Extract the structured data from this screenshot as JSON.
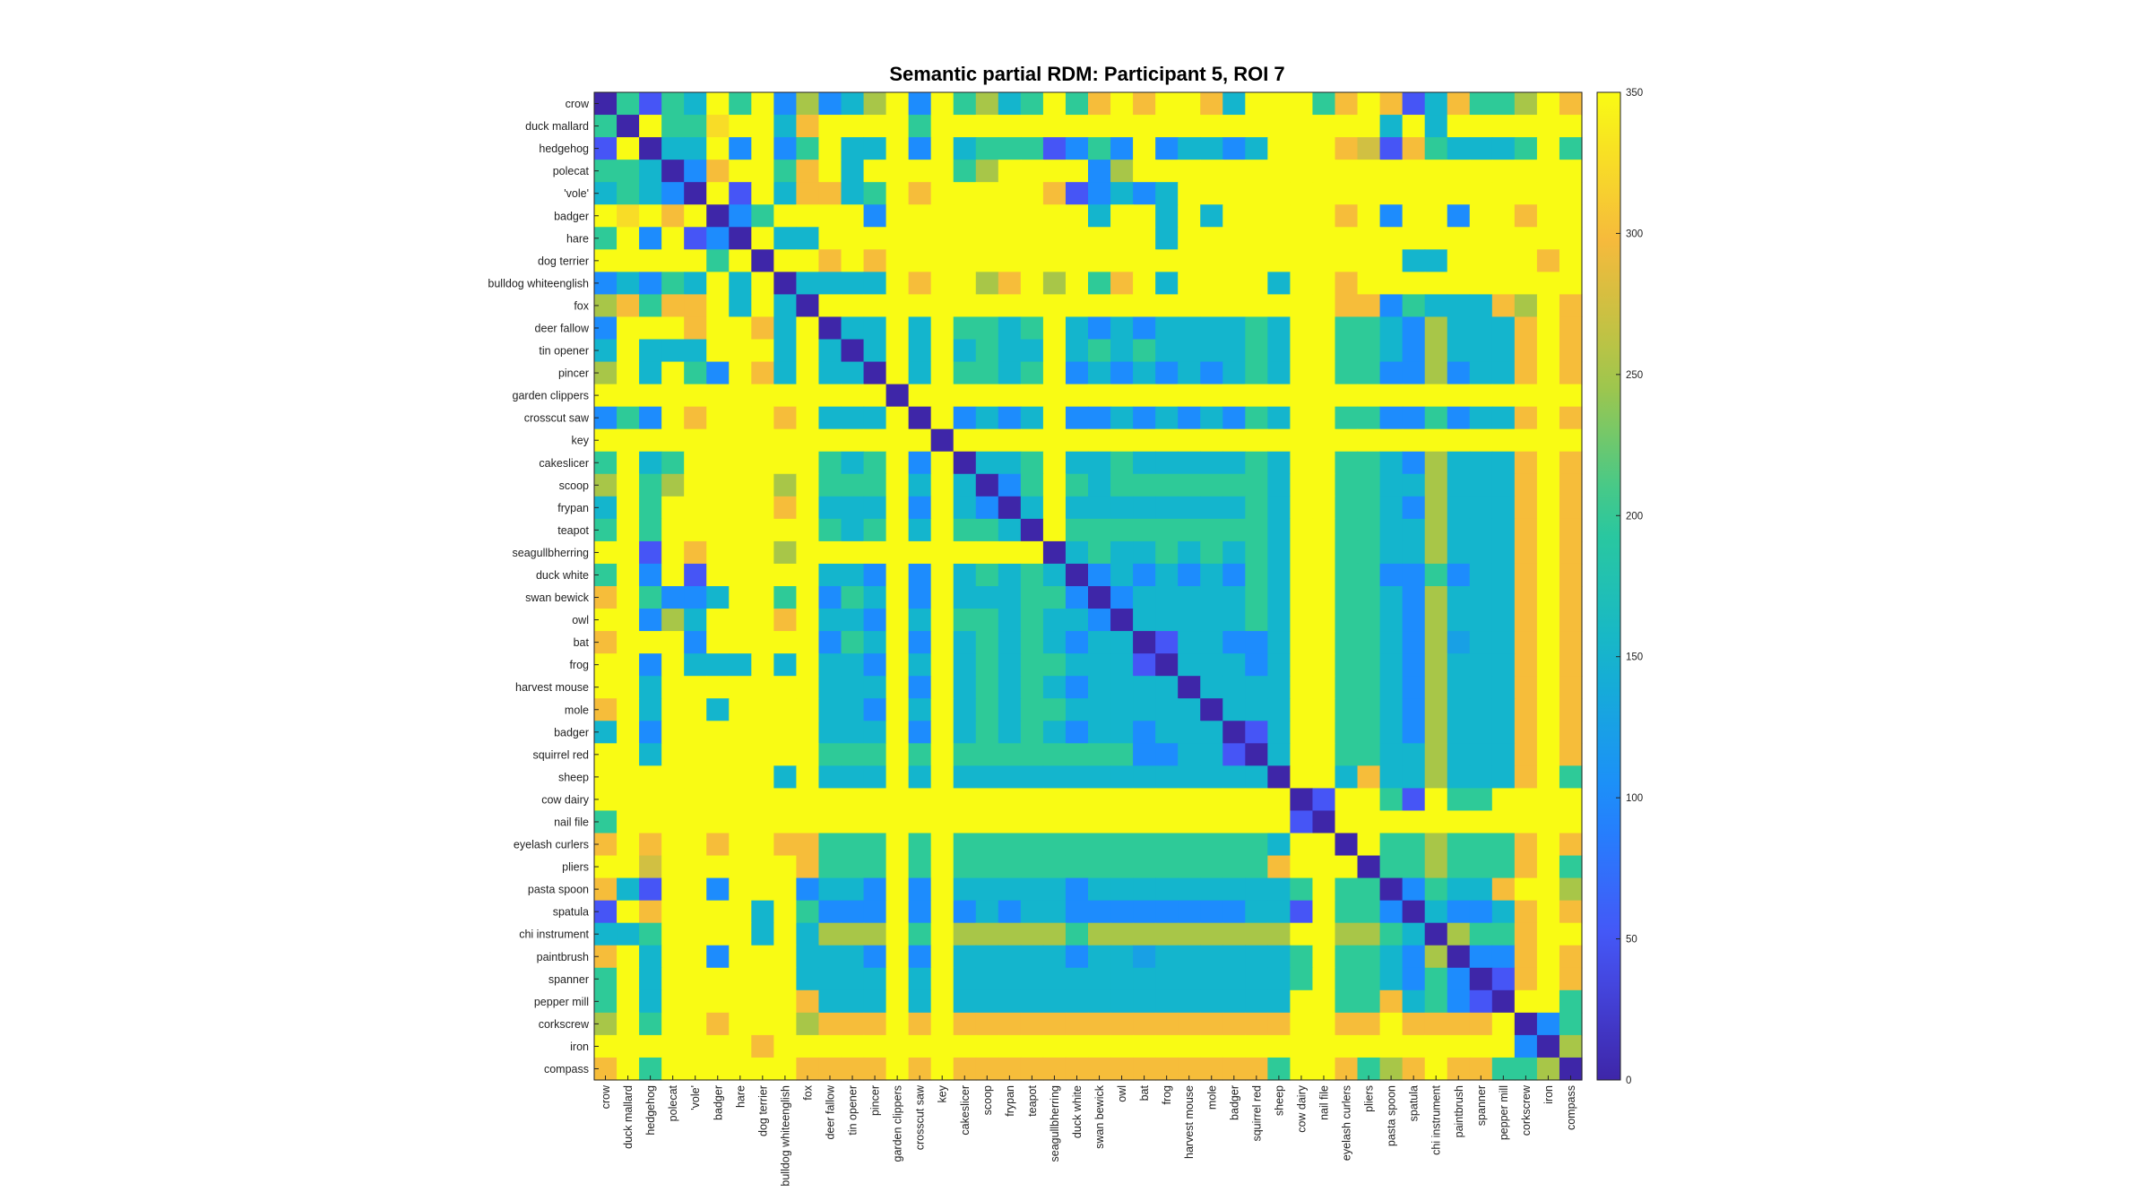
{
  "chart_data": {
    "type": "heatmap",
    "title": "Semantic partial RDM: Participant 5, ROI 7",
    "colormap": "parula",
    "clim": [
      0,
      350
    ],
    "colorbar_ticks": [
      "0",
      "50",
      "100",
      "150",
      "200",
      "250",
      "300",
      "350"
    ],
    "labels": [
      "crow",
      "duck mallard",
      "hedgehog",
      "polecat",
      "'vole'",
      "badger",
      "hare",
      "dog terrier",
      "bulldog whiteenglish",
      "fox",
      "deer fallow",
      "tin opener",
      "pincer",
      "garden clippers",
      "crosscut saw",
      "key",
      "cakeslicer",
      "scoop",
      "frypan",
      "teapot",
      "seagullbherring",
      "duck white",
      "swan bewick",
      "owl",
      "bat",
      "frog",
      "harvest mouse",
      "mole",
      "badger",
      "squirrel red",
      "sheep",
      "cow dairy",
      "nail file",
      "eyelash curlers",
      "pliers",
      "pasta spoon",
      "spatula",
      "chi instrument",
      "paintbrush",
      "spanner",
      "pepper mill",
      "corkscrew",
      "iron",
      "compass"
    ],
    "rows_approx": [
      "0 200 50 200 150 350 200 350 100 250 100 150 250 350 100 350 200 250 150 200 350 200 300 350 300 350 350 300 150 350 350 350 200 300 350 300 50 150 300 200 200 250 350 300",
      "200 0 350 200 200 350 350 350 150 300 350 350 350 350 200 350 350 350 350 350 350 350 350 350 350 350 350 350 350 350 350 350 350 350 350 150 350 150 350 350 350 350 350 350",
      "50 350 0 150 150 350 100 350 100 200 350 150 150 350 100 350 150 200 200 200 50 100 200 100 350 100 150 150 100 150 350 350 350 300 200 50 300 200 150 150 150 200 350 200",
      "200 200 150 0 100 300 350 350 200 300 350 150 350 350 350 350 200 250 350 350 350 350 100 250 350 350 350 350 350 350 350 350 350 350 350 350 350 350 350 350 350 350 350 350",
      "150 200 150 100 0 350 50 350 150 300 300 150 200 350 300 350 350 350 350 350 300 50 100 150 100 150 350 350 350 350 350 350 350 350 350 350 350 350 350 350 350 350 350 350",
      "350 300 350 300 350 0 100 200 350 350 350 350 100 350 350 350 350 350 350 350 350 350 150 350 350 150 350 150 350 350 350 350 350 300 350 100 350 350 100 350 350 300 350 350",
      "200 350 100 350 50 100 0 350 150 150 350 350 350 350 350 350 350 350 350 350 350 350 350 350 350 150 350 350 350 350 350 350 350 350 350 350 350 350 350 350 350 350 350 350",
      "350 350 350 350 350 200 350 0 350 350 300 350 300 350 350 350 350 350 350 350 350 350 350 350 350 350 350 350 350 350 350 350 350 350 350 350 150 150 350 350 350 350 300 350",
      "100 150 100 200 150 350 150 350 0 150 150 150 150 350 300 350 350 250 300 350 250 350 200 300 350 150 350 350 350 350 150 350 350 300 350 350 350 350 350 350 350 350 350 350",
      "250 300 200 300 300 350 150 350 150 0 350 350 350 350 350 350 350 350 350 350 350 350 350 350 350 350 350 350 350 350 350 350 350 300 300 100 200 150 150 150 300 250 350 300",
      "100 350 350 350 300 350 350 300 150 350 0 150 150 350 150 350 200 200 150 200 350 150 100 150 100 150 150 150 150 200 150 350 350 200 200 150 100 250 150 150 150 300 350 300",
      "150 350 150 150 150 350 350 350 150 350 150 0 150 350 150 350 150 200 150 150 350 150 200 150 200 150 150 150 150 200 150 350 350 200 200 150 100 250 150 150 150 300 350 300",
      "250 350 150 350 200 100 350 300 150 350 150 150 0 350 150 350 200 200 150 200 350 100 150 100 150 100 150 100 150 200 150 350 350 200 200 100 100 250 100 150 150 300 350 300",
      "350 350 350 350 350 350 350 350 350 350 350 350 350 0 350 350 350 350 350 350 350 350 350 350 350 350 350 350 350 350 350 350 350 350 350 350 350 350 350 350 350 350 350 350",
      "100 200 100 350 300 350 350 350 300 350 150 150 150 350 0 350 100 150 100 150 350 100 100 150 100 150 100 150 100 200 150 350 350 200 200 100 100 200 100 150 150 300 350 300",
      "350 350 350 350 350 350 350 350 350 350 350 350 350 350 350 0 350 350 350 350 350 350 350 350 350 350 350 350 350 350 350 350 350 350 350 350 350 350 350 350 350 350 350 350",
      "200 350 150 200 350 350 350 350 350 350 200 150 200 350 100 350 0 150 150 200 350 150 150 200 150 150 150 150 150 200 150 350 350 200 200 150 100 250 150 150 150 300 350 300",
      "250 350 200 250 350 350 350 350 250 350 200 200 200 350 150 350 150 0 100 200 350 200 150 200 200 200 200 200 200 200 150 350 350 200 200 150 150 250 150 150 150 300 350 300",
      "150 350 200 350 350 350 350 350 300 350 150 150 150 350 100 350 150 100 0 150 350 150 150 150 150 150 150 150 150 200 150 350 350 200 200 150 100 250 150 150 150 300 350 300",
      "200 350 200 350 350 350 350 350 350 350 200 150 200 350 150 350 200 200 150 0 350 200 200 200 200 200 200 200 200 200 150 350 350 200 200 150 150 250 150 150 150 300 350 300",
      "350 350 50 350 300 350 350 350 250 350 350 350 350 350 350 350 350 350 350 350 0 150 200 150 150 200 150 200 150 200 150 350 350 200 200 150 150 250 150 150 150 300 350 300",
      "200 350 100 350 50 350 350 350 350 350 150 150 100 350 100 350 150 200 150 200 150 0 100 150 100 150 100 150 100 200 150 350 350 200 200 100 100 200 100 150 150 300 350 300",
      "300 350 200 100 100 150 350 350 200 350 100 200 150 350 100 350 150 150 150 200 200 100 0 100 150 150 150 150 150 200 150 350 350 200 200 150 100 250 150 150 150 300 350 300",
      "350 350 100 250 150 350 350 350 300 350 150 150 100 350 150 350 200 200 150 200 150 150 100 0 150 150 150 150 150 200 150 350 350 200 200 150 100 250 150 150 150 300 350 300",
      "300 350 350 350 100 350 350 350 350 350 100 200 150 350 100 350 150 200 150 200 150 100 150 150 0 50 150 150 100 100 150 350 350 200 200 150 100 250 150 150 150 300 350 300",
      "350 350 100 350 150 150 150 350 150 350 150 150 100 350 150 350 150 200 150 200 200 150 150 150 50 0 150 150 150 100 150 350 350 200 200 150 100 250 150 150 150 300 350 300",
      "350 350 150 350 350 350 350 350 350 350 150 150 150 350 100 350 150 200 150 200 150 100 150 150 150 150 0 150 150 150 150 350 350 200 200 150 100 250 150 150 150 300 350 300",
      "300 350 150 350 350 150 350 350 350 350 150 150 100 350 150 350 150 200 150 200 200 150 150 150 150 150 150 0 150 150 150 350 350 200 200 150 100 250 150 150 150 300 350 300",
      "150 350 100 350 350 350 350 350 350 350 150 150 150 350 100 350 150 200 150 200 150 100 150 150 100 150 150 150 0 50 150 350 350 200 200 150 100 250 150 150 150 300 350 300",
      "350 350 150 350 350 350 350 350 350 350 200 200 200 350 200 350 200 200 200 200 200 200 200 200 100 100 150 150 50 0 150 350 350 200 200 150 150 250 150 150 150 300 350 300",
      "350 350 350 350 350 350 350 350 150 350 150 150 150 350 150 350 150 150 150 150 150 150 150 150 150 150 150 150 150 150 0 350 350 150 300 150 150 250 150 150 150 300 350 200",
      "350 350 350 350 350 350 350 350 350 350 350 350 350 350 350 350 350 350 350 350 350 350 350 350 350 350 350 350 350 350 350 0 50 350 350 200 50 350 200 200 350 350 350 350",
      "200 350 350 350 350 350 350 350 350 350 350 350 350 350 350 350 350 350 350 350 350 350 350 350 350 350 350 350 350 350 350 50 0 350 350 350 350 350 350 350 350 350 350 350",
      "300 350 300 350 350 300 350 350 300 300 200 200 200 350 200 350 200 200 200 200 200 200 200 200 200 200 200 200 200 200 150 350 350 0 350 200 200 250 200 200 200 300 350 300",
      "350 350 350 350 350 350 350 350 350 300 200 200 200 350 200 350 200 200 200 200 200 200 200 200 200 200 200 200 200 200 300 350 350 350 0 200 200 250 200 200 200 300 350 200",
      "300 150 50 350 350 100 350 350 350 100 150 150 100 350 100 350 150 150 150 150 150 100 150 150 150 150 150 150 150 150 150 200 350 200 200 0 100 200 150 150 300 350 350 250",
      "50 350 300 350 350 350 350 150 350 200 100 100 100 350 100 350 100 150 100 150 150 100 100 100 100 100 100 100 100 150 150 50 350 200 200 100 0 150 100 100 150 300 350 300",
      "150 150 200 350 350 350 350 150 350 150 250 250 250 350 200 350 250 250 250 250 250 200 250 250 250 250 250 250 250 250 250 350 350 250 250 200 150 0 250 200 200 300 350 350",
      "300 350 150 350 350 100 350 350 350 150 150 150 100 350 100 350 150 150 150 150 150 100 150 150 100 150 150 150 150 150 150 200 350 200 200 150 100 250 0 100 100 300 350 300",
      "200 350 150 350 350 350 350 350 350 150 150 150 150 350 150 350 150 150 150 150 150 150 150 150 150 150 150 150 150 150 150 200 350 200 200 150 100 200 100 0 50 300 350 300",
      "200 350 150 350 350 350 350 350 350 300 150 150 150 350 150 350 150 150 150 150 150 150 150 150 150 150 150 150 150 150 150 350 350 200 200 300 150 200 100 50 0 350 350 200",
      "250 350 200 350 350 300 350 350 350 250 300 300 300 350 300 350 300 300 300 300 300 300 300 300 300 300 300 300 300 300 300 350 350 300 300 350 300 300 300 300 350 0 100 200",
      "350 350 350 350 350 350 350 300 350 350 350 350 350 350 350 350 350 350 350 350 350 350 350 350 350 350 350 350 350 350 350 350 350 350 350 350 350 350 350 350 350 100 0 250",
      "300 350 200 350 350 350 350 350 350 300 300 300 300 350 300 350 300 300 300 300 300 300 300 300 300 300 300 300 300 300 200 350 350 300 200 250 300 350 300 300 200 200 250 0"
    ]
  }
}
